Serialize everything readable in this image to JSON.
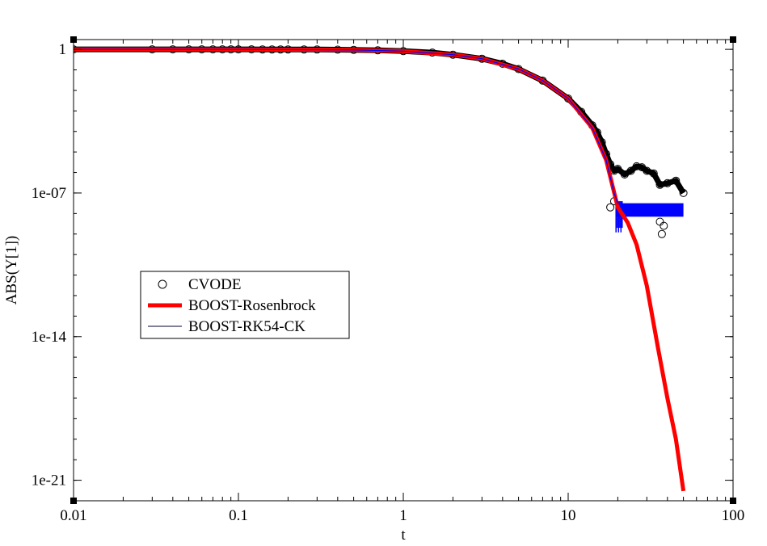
{
  "chart_data": {
    "type": "line",
    "title": "",
    "xlabel": "t",
    "ylabel": "ABS(Y[1])",
    "x_scale": "log",
    "y_scale": "log",
    "xlim": [
      0.01,
      100
    ],
    "ylim": [
      1e-22,
      3
    ],
    "x_ticks": [
      {
        "value": 0.01,
        "label": "0.01"
      },
      {
        "value": 0.1,
        "label": "0.1"
      },
      {
        "value": 1,
        "label": "1"
      },
      {
        "value": 10,
        "label": "10"
      },
      {
        "value": 100,
        "label": "100"
      }
    ],
    "y_ticks": [
      {
        "value": 1,
        "label": "1"
      },
      {
        "value": 1e-07,
        "label": "1e-07"
      },
      {
        "value": 1e-14,
        "label": "1e-14"
      },
      {
        "value": 1e-21,
        "label": "1e-21"
      }
    ],
    "grid": false,
    "legend_position": "center-left",
    "series": [
      {
        "name": "CVODE",
        "style": "open-circle",
        "color": "#000000",
        "points": [
          [
            0.01,
            1
          ],
          [
            0.03,
            1
          ],
          [
            0.04,
            1
          ],
          [
            0.05,
            1
          ],
          [
            0.06,
            1
          ],
          [
            0.07,
            1
          ],
          [
            0.08,
            0.999
          ],
          [
            0.09,
            0.999
          ],
          [
            0.1,
            0.999
          ],
          [
            0.12,
            0.998
          ],
          [
            0.14,
            0.997
          ],
          [
            0.16,
            0.996
          ],
          [
            0.18,
            0.995
          ],
          [
            0.2,
            0.994
          ],
          [
            0.25,
            0.99
          ],
          [
            0.3,
            0.985
          ],
          [
            0.4,
            0.97
          ],
          [
            0.5,
            0.95
          ],
          [
            0.7,
            0.9
          ],
          [
            1,
            0.82
          ],
          [
            1.5,
            0.7
          ],
          [
            2,
            0.55
          ],
          [
            3,
            0.35
          ],
          [
            4,
            0.2
          ],
          [
            5,
            0.11
          ],
          [
            7,
            0.03
          ],
          [
            10,
            0.004
          ],
          [
            12,
            0.0009
          ],
          [
            14,
            0.0002
          ],
          [
            15,
            9e-05
          ],
          [
            16,
            3e-05
          ],
          [
            17,
            8e-06
          ],
          [
            18,
            2.5e-06
          ],
          [
            19,
            1.2e-06
          ],
          [
            20,
            1.5e-06
          ],
          [
            22,
            8e-07
          ],
          [
            24,
            1.2e-06
          ],
          [
            26,
            2e-06
          ],
          [
            28,
            1.8e-06
          ],
          [
            30,
            1.2e-06
          ],
          [
            33,
            9e-07
          ],
          [
            36,
            2.5e-07
          ],
          [
            40,
            3e-07
          ],
          [
            45,
            4e-07
          ],
          [
            50,
            1e-07
          ],
          [
            18,
            2e-08
          ],
          [
            19,
            4e-08
          ],
          [
            36,
            4e-09
          ],
          [
            37,
            1e-09
          ],
          [
            38,
            2.5e-09
          ]
        ]
      },
      {
        "name": "BOOST-Rosenbrock",
        "style": "thick-line",
        "color": "#ff0000",
        "points": [
          [
            0.01,
            1
          ],
          [
            0.1,
            0.99
          ],
          [
            0.3,
            0.97
          ],
          [
            0.5,
            0.94
          ],
          [
            1,
            0.82
          ],
          [
            2,
            0.55
          ],
          [
            3,
            0.35
          ],
          [
            5,
            0.11
          ],
          [
            7,
            0.03
          ],
          [
            10,
            0.004
          ],
          [
            14,
            0.00015
          ],
          [
            17,
            4e-06
          ],
          [
            20,
            2e-08
          ],
          [
            23,
            3.5e-09
          ],
          [
            26,
            3e-10
          ],
          [
            30,
            3e-12
          ],
          [
            35,
            3e-15
          ],
          [
            40,
            1e-17
          ],
          [
            45,
            1e-19
          ],
          [
            50,
            3e-22
          ]
        ]
      },
      {
        "name": "BOOST-RK54-CK",
        "style": "thin-line",
        "color": "#0000ff",
        "points": [
          [
            0.01,
            1
          ],
          [
            0.1,
            0.99
          ],
          [
            0.3,
            0.97
          ],
          [
            0.5,
            0.94
          ],
          [
            1,
            0.82
          ],
          [
            2,
            0.55
          ],
          [
            3,
            0.35
          ],
          [
            5,
            0.11
          ],
          [
            7,
            0.03
          ],
          [
            10,
            0.004
          ],
          [
            14,
            0.00015
          ],
          [
            17,
            4e-06
          ],
          [
            19,
            1e-07
          ],
          [
            20,
            3e-08
          ],
          [
            22,
            3e-08
          ],
          [
            30,
            3e-08
          ],
          [
            40,
            3e-08
          ],
          [
            50,
            3e-08
          ]
        ],
        "noise_band": {
          "x_from": 19.5,
          "x_to": 50,
          "y_low": 7e-09,
          "y_high": 3e-08
        }
      }
    ]
  },
  "colors": {
    "cvode": "#000000",
    "rosenbrock": "#ff0000",
    "rk54": "#0000ff",
    "axis": "#000000",
    "background": "#ffffff"
  }
}
